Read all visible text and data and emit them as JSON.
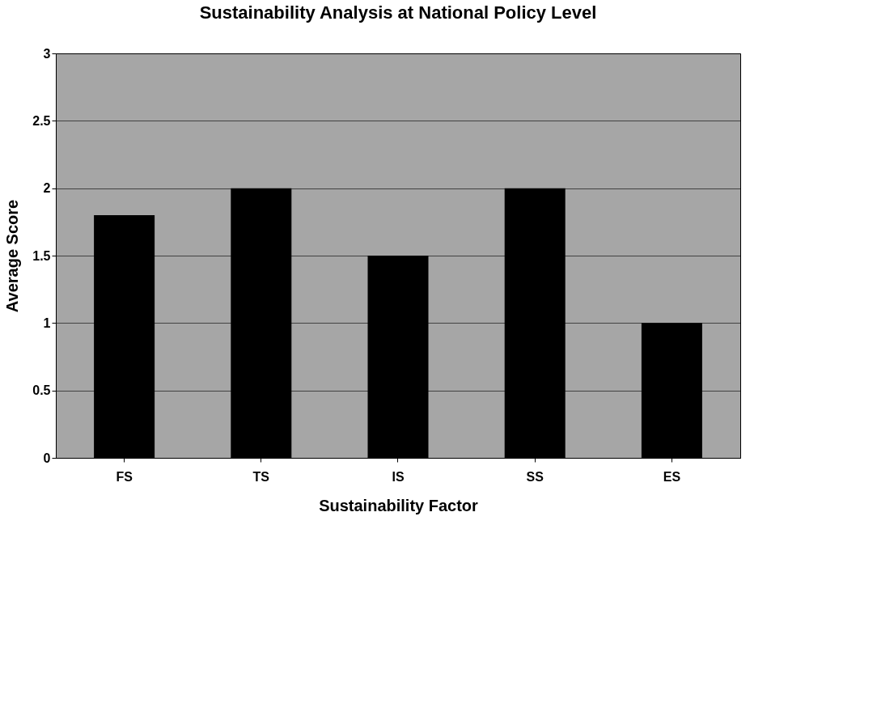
{
  "chart_data": {
    "type": "bar",
    "title": "Sustainability Analysis at National Policy Level",
    "xlabel": "Sustainability Factor",
    "ylabel": "Average Score",
    "categories": [
      "FS",
      "TS",
      "IS",
      "SS",
      "ES"
    ],
    "values": [
      1.8,
      2.0,
      1.5,
      2.0,
      1.0
    ],
    "color": "#000000",
    "ylim": [
      0,
      3
    ],
    "yticks": [
      0,
      0.5,
      1,
      1.5,
      2,
      2.5,
      3
    ],
    "grid": "y"
  }
}
